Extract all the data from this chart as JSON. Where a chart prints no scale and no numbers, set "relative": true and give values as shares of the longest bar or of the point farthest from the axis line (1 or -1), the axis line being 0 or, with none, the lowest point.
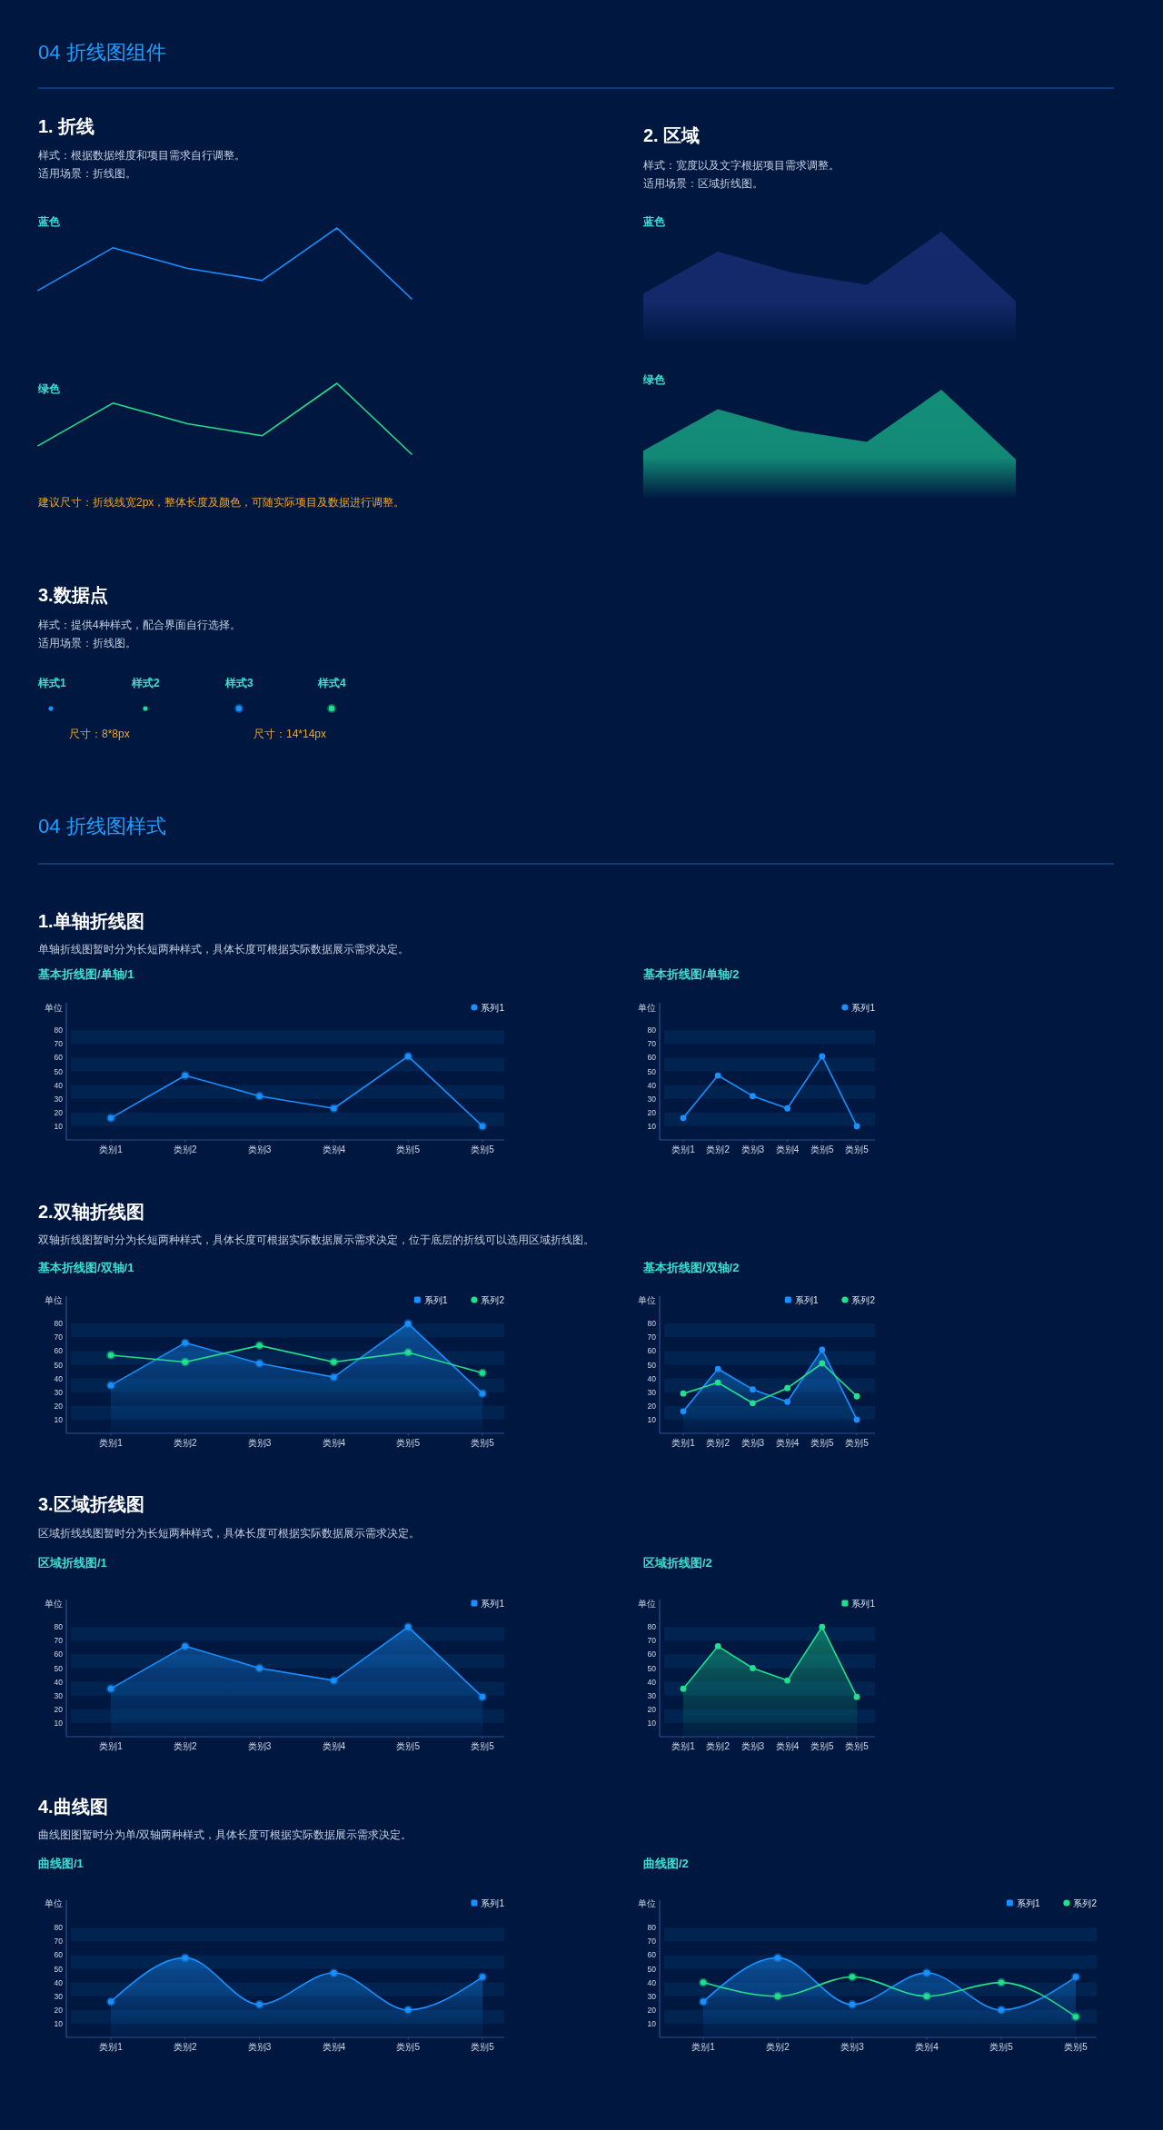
{
  "chart_data": [
    {
      "type": "other",
      "title": "04 折线图组件"
    },
    {
      "type": "other",
      "title": "1. 折线",
      "annotations": [
        "样式：根据数据维度和项目需求自行调整。",
        "适用场景：折线图。"
      ]
    },
    {
      "type": "line",
      "title": "蓝色",
      "relative": true,
      "categories": [
        null,
        null,
        null,
        null,
        null,
        null
      ],
      "values": [
        0.12,
        0.72,
        0.43,
        0.26,
        1,
        0
      ],
      "color": "#1890ff"
    },
    {
      "type": "line",
      "title": "绿色",
      "relative": true,
      "categories": [
        null,
        null,
        null,
        null,
        null,
        null
      ],
      "values": [
        0.12,
        0.72,
        0.43,
        0.26,
        1,
        0
      ],
      "color": "#1fe08c",
      "annotations": [
        "建议尺寸：折线线宽2px，整体长度及颜色，可随实际项目及数据进行调整。"
      ]
    },
    {
      "type": "other",
      "title": "2. 区域",
      "annotations": [
        "样式：宽度以及文字根据项目需求调整。",
        "适用场景：区域折线图。"
      ]
    },
    {
      "type": "area",
      "title": "蓝色",
      "relative": true,
      "categories": [
        null,
        null,
        null,
        null,
        null,
        null
      ],
      "values": [
        0.44,
        0.82,
        0.63,
        0.52,
        1,
        0.37
      ],
      "color": "#142a6c"
    },
    {
      "type": "area",
      "title": "绿色",
      "relative": true,
      "categories": [
        null,
        null,
        null,
        null,
        null,
        null
      ],
      "values": [
        0.44,
        0.82,
        0.63,
        0.52,
        1,
        0.36
      ],
      "color": "#138f79"
    },
    {
      "type": "other",
      "title": "3.数据点",
      "annotations": [
        "样式：提供4种样式，配合界面自行选择。",
        "适用场景：折线图。",
        "样式1",
        "样式2",
        "样式3",
        "样式4",
        "尺寸：8*8px",
        "尺寸：14*14px"
      ]
    },
    {
      "type": "other",
      "title": "04 折线图样式"
    },
    {
      "type": "other",
      "title": "1.单轴折线图",
      "annotations": [
        "单轴折线图暂时分为长短两种样式，具体长度可根据实际数据展示需求决定。"
      ]
    },
    {
      "type": "line",
      "title": "基本折线图/单轴/1",
      "ylabel": "单位",
      "categories": [
        "类别1",
        "类别2",
        "类别3",
        "类别4",
        "类别5",
        "类别5"
      ],
      "series": [
        {
          "name": "系列1",
          "color": "#1890ff",
          "values": [
            16,
            47,
            32,
            23,
            61,
            10
          ]
        }
      ],
      "ylim": [
        0,
        100
      ],
      "yticks": [
        10,
        20,
        30,
        40,
        50,
        60,
        70,
        80
      ],
      "bands": [
        {
          "axis": "y",
          "from": 70,
          "to": 80,
          "color": "#00234f"
        },
        {
          "axis": "y",
          "from": 50,
          "to": 60,
          "color": "#00234f"
        },
        {
          "axis": "y",
          "from": 30,
          "to": 40,
          "color": "#00234f"
        },
        {
          "axis": "y",
          "from": 10,
          "to": 20,
          "color": "#00234f"
        }
      ],
      "legend": "top right",
      "marker": "circle"
    },
    {
      "type": "line",
      "title": "基本折线图/单轴/2",
      "ylabel": "单位",
      "categories": [
        "类别1",
        "类别2",
        "类别3",
        "类别4",
        "类别5",
        "类别5"
      ],
      "series": [
        {
          "name": "系列1",
          "color": "#1890ff",
          "values": [
            16,
            47,
            32,
            23,
            61,
            10
          ]
        }
      ],
      "ylim": [
        0,
        100
      ],
      "yticks": [
        10,
        20,
        30,
        40,
        50,
        60,
        70,
        80
      ],
      "bands": [
        {
          "axis": "y",
          "from": 70,
          "to": 80,
          "color": "#00234f"
        },
        {
          "axis": "y",
          "from": 50,
          "to": 60,
          "color": "#00234f"
        },
        {
          "axis": "y",
          "from": 30,
          "to": 40,
          "color": "#00234f"
        },
        {
          "axis": "y",
          "from": 10,
          "to": 20,
          "color": "#00234f"
        }
      ],
      "legend": "top right",
      "marker": "circle"
    },
    {
      "type": "other",
      "title": "2.双轴折线图",
      "annotations": [
        "双轴折线图暂时分为长短两种样式，具体长度可根据实际数据展示需求决定，位于底层的折线可以选用区域折线图。"
      ]
    },
    {
      "type": "line",
      "title": "基本折线图/双轴/1",
      "ylabel": "单位",
      "categories": [
        "类别1",
        "类别2",
        "类别3",
        "类别4",
        "类别5",
        "类别5"
      ],
      "series": [
        {
          "name": "系列1",
          "type": "area",
          "color": "#1890ff",
          "values": [
            35,
            66,
            51,
            41,
            80,
            29
          ]
        },
        {
          "name": "系列2",
          "type": "line",
          "color": "#1fe08c",
          "values": [
            57,
            52,
            64,
            52,
            59,
            44
          ]
        }
      ],
      "ylim": [
        0,
        100
      ],
      "yticks": [
        10,
        20,
        30,
        40,
        50,
        60,
        70,
        80
      ],
      "bands": [
        {
          "axis": "y",
          "from": 70,
          "to": 80,
          "color": "#00234f"
        },
        {
          "axis": "y",
          "from": 50,
          "to": 60,
          "color": "#00234f"
        },
        {
          "axis": "y",
          "from": 30,
          "to": 40,
          "color": "#00234f"
        },
        {
          "axis": "y",
          "from": 10,
          "to": 20,
          "color": "#00234f"
        }
      ],
      "legend": "top right",
      "marker": "circle"
    },
    {
      "type": "line",
      "title": "基本折线图/双轴/2",
      "ylabel": "单位",
      "categories": [
        "类别1",
        "类别2",
        "类别3",
        "类别4",
        "类别5",
        "类别5"
      ],
      "series": [
        {
          "name": "系列1",
          "type": "area",
          "color": "#1890ff",
          "values": [
            16,
            47,
            32,
            23,
            61,
            10
          ]
        },
        {
          "name": "系列2",
          "type": "line",
          "color": "#1fe08c",
          "values": [
            29,
            37,
            22,
            33,
            51,
            27
          ]
        }
      ],
      "ylim": [
        0,
        100
      ],
      "yticks": [
        10,
        20,
        30,
        40,
        50,
        60,
        70,
        80
      ],
      "bands": [
        {
          "axis": "y",
          "from": 70,
          "to": 80,
          "color": "#00234f"
        },
        {
          "axis": "y",
          "from": 50,
          "to": 60,
          "color": "#00234f"
        },
        {
          "axis": "y",
          "from": 30,
          "to": 40,
          "color": "#00234f"
        },
        {
          "axis": "y",
          "from": 10,
          "to": 20,
          "color": "#00234f"
        }
      ],
      "legend": "top right",
      "marker": "circle"
    },
    {
      "type": "other",
      "title": "3.区域折线图",
      "annotations": [
        "区域折线线图暂时分为长短两种样式，具体长度可根据实际数据展示需求决定。"
      ]
    },
    {
      "type": "area",
      "title": "区域折线图/1",
      "ylabel": "单位",
      "categories": [
        "类别1",
        "类别2",
        "类别3",
        "类别4",
        "类别5",
        "类别5"
      ],
      "series": [
        {
          "name": "系列1",
          "color": "#1890ff",
          "values": [
            35,
            66,
            50,
            41,
            80,
            29
          ]
        }
      ],
      "ylim": [
        0,
        100
      ],
      "yticks": [
        10,
        20,
        30,
        40,
        50,
        60,
        70,
        80
      ],
      "bands": [
        {
          "axis": "y",
          "from": 70,
          "to": 80,
          "color": "#00234f"
        },
        {
          "axis": "y",
          "from": 50,
          "to": 60,
          "color": "#00234f"
        },
        {
          "axis": "y",
          "from": 30,
          "to": 40,
          "color": "#00234f"
        },
        {
          "axis": "y",
          "from": 10,
          "to": 20,
          "color": "#00234f"
        }
      ],
      "legend": "top right",
      "marker": "circle"
    },
    {
      "type": "area",
      "title": "区域折线图/2",
      "ylabel": "单位",
      "categories": [
        "类别1",
        "类别2",
        "类别3",
        "类别4",
        "类别5",
        "类别5"
      ],
      "series": [
        {
          "name": "系列1",
          "color": "#1fe08c",
          "values": [
            35,
            66,
            50,
            41,
            80,
            29
          ]
        }
      ],
      "ylim": [
        0,
        100
      ],
      "yticks": [
        10,
        20,
        30,
        40,
        50,
        60,
        70,
        80
      ],
      "bands": [
        {
          "axis": "y",
          "from": 70,
          "to": 80,
          "color": "#00234f"
        },
        {
          "axis": "y",
          "from": 50,
          "to": 60,
          "color": "#00234f"
        },
        {
          "axis": "y",
          "from": 30,
          "to": 40,
          "color": "#00234f"
        },
        {
          "axis": "y",
          "from": 10,
          "to": 20,
          "color": "#00234f"
        }
      ],
      "legend": "top right",
      "marker": "circle"
    },
    {
      "type": "other",
      "title": "4.曲线图",
      "annotations": [
        "曲线图图暂时分为单/双轴两种样式，具体长度可根据实际数据展示需求决定。"
      ]
    },
    {
      "type": "area",
      "title": "曲线图/1",
      "ylabel": "单位",
      "categories": [
        "类别1",
        "类别2",
        "类别3",
        "类别4",
        "类别5",
        "类别5"
      ],
      "series": [
        {
          "name": "系列1",
          "color": "#1890ff",
          "values": [
            26,
            58,
            24,
            47,
            20,
            44
          ]
        }
      ],
      "ylim": [
        0,
        100
      ],
      "yticks": [
        10,
        20,
        30,
        40,
        50,
        60,
        70,
        80
      ],
      "bands": [
        {
          "axis": "y",
          "from": 70,
          "to": 80,
          "color": "#00234f"
        },
        {
          "axis": "y",
          "from": 50,
          "to": 60,
          "color": "#00234f"
        },
        {
          "axis": "y",
          "from": 30,
          "to": 40,
          "color": "#00234f"
        },
        {
          "axis": "y",
          "from": 10,
          "to": 20,
          "color": "#00234f"
        }
      ],
      "legend": "top right",
      "marker": "circle"
    },
    {
      "type": "line",
      "title": "曲线图/2",
      "ylabel": "单位",
      "categories": [
        "类别1",
        "类别2",
        "类别3",
        "类别4",
        "类别5",
        "类别5"
      ],
      "series": [
        {
          "name": "系列1",
          "type": "area",
          "color": "#1890ff",
          "values": [
            26,
            58,
            24,
            47,
            20,
            44
          ]
        },
        {
          "name": "系列2",
          "type": "line",
          "color": "#1fe08c",
          "values": [
            40,
            30,
            44,
            30,
            40,
            15
          ]
        }
      ],
      "ylim": [
        0,
        100
      ],
      "yticks": [
        10,
        20,
        30,
        40,
        50,
        60,
        70,
        80
      ],
      "bands": [
        {
          "axis": "y",
          "from": 70,
          "to": 80,
          "color": "#00234f"
        },
        {
          "axis": "y",
          "from": 50,
          "to": 60,
          "color": "#00234f"
        },
        {
          "axis": "y",
          "from": 30,
          "to": 40,
          "color": "#00234f"
        },
        {
          "axis": "y",
          "from": 10,
          "to": 20,
          "color": "#00234f"
        }
      ],
      "legend": "top right",
      "marker": "circle"
    }
  ]
}
